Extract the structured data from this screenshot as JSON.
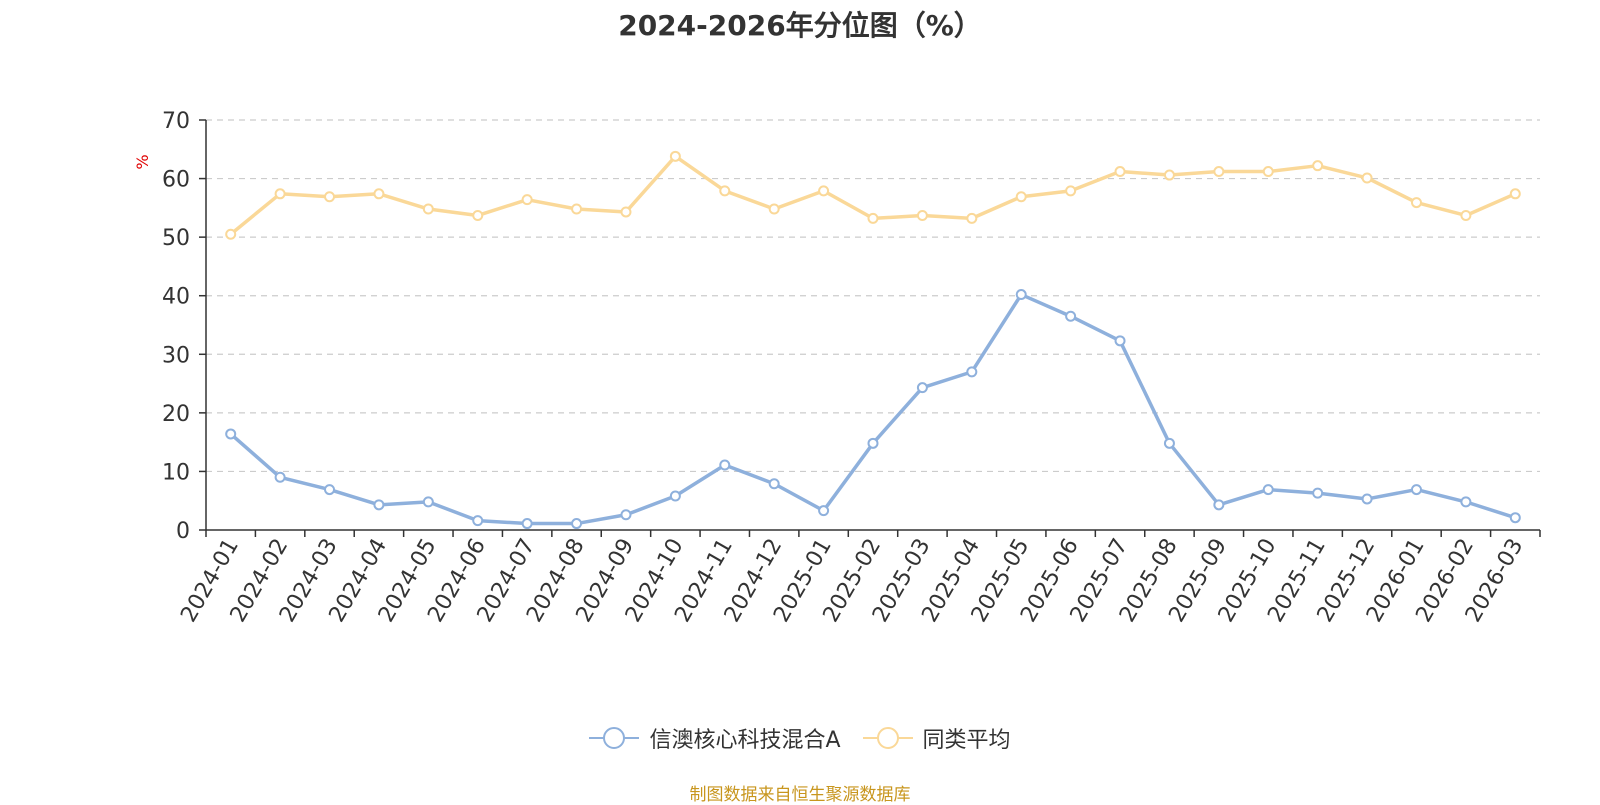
{
  "source": "制图数据来自恒生聚源数据库",
  "colors": {
    "fund": "#8eb0dc",
    "average": "#fad898",
    "axis_unit": "#e00000",
    "source": "#c8961e"
  },
  "chart_data": {
    "type": "line",
    "title": "2024-2026年分位图（%）",
    "ylabel": "%",
    "ylim": [
      0,
      70
    ],
    "yticks": [
      0,
      10,
      20,
      30,
      40,
      50,
      60,
      70
    ],
    "grid": true,
    "legend_position": "bottom",
    "categories": [
      "2024-01",
      "2024-02",
      "2024-03",
      "2024-04",
      "2024-05",
      "2024-06",
      "2024-07",
      "2024-08",
      "2024-09",
      "2024-10",
      "2024-11",
      "2024-12",
      "2025-01",
      "2025-02",
      "2025-03",
      "2025-04",
      "2025-05",
      "2025-06",
      "2025-07",
      "2025-08",
      "2025-09",
      "2025-10",
      "2025-11",
      "2025-12",
      "2026-01",
      "2026-02",
      "2026-03"
    ],
    "series": [
      {
        "name": "信澳核心科技混合A",
        "color": "#8eb0dc",
        "values": [
          16.4,
          9.0,
          6.9,
          4.3,
          4.8,
          1.6,
          1.1,
          1.1,
          2.6,
          5.8,
          11.1,
          7.9,
          3.3,
          14.8,
          24.3,
          27.0,
          40.2,
          36.5,
          32.3,
          14.8,
          4.3,
          6.9,
          6.3,
          5.3,
          6.9,
          4.8,
          2.1
        ]
      },
      {
        "name": "同类平均",
        "color": "#fad898",
        "values": [
          50.5,
          57.4,
          56.9,
          57.4,
          54.8,
          53.7,
          56.4,
          54.8,
          54.3,
          63.8,
          57.9,
          54.8,
          57.9,
          53.2,
          53.7,
          53.2,
          56.9,
          57.9,
          61.2,
          60.6,
          61.2,
          61.2,
          62.2,
          60.1,
          55.9,
          53.7,
          57.4
        ]
      }
    ]
  }
}
